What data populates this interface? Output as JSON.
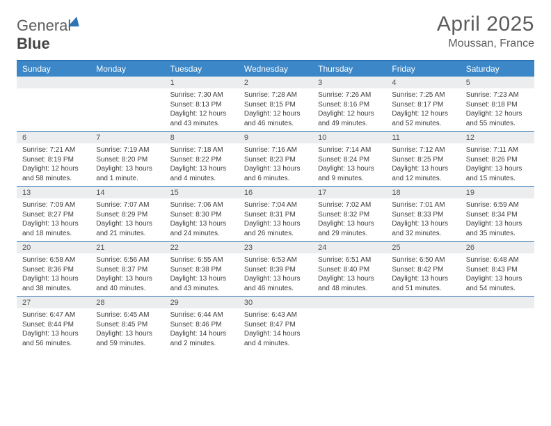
{
  "logo": {
    "part1": "General",
    "part2": "Blue"
  },
  "title": "April 2025",
  "location": "Moussan, France",
  "headers": [
    "Sunday",
    "Monday",
    "Tuesday",
    "Wednesday",
    "Thursday",
    "Friday",
    "Saturday"
  ],
  "colors": {
    "header_bg": "#3b87c8",
    "border": "#2f73b5",
    "daynum_bg": "#ecedee",
    "text": "#3b3b3b",
    "title": "#5c5c5c"
  },
  "weeks": [
    [
      {
        "day": "",
        "sunrise": "",
        "sunset": "",
        "daylight": ""
      },
      {
        "day": "",
        "sunrise": "",
        "sunset": "",
        "daylight": ""
      },
      {
        "day": "1",
        "sunrise": "Sunrise: 7:30 AM",
        "sunset": "Sunset: 8:13 PM",
        "daylight": "Daylight: 12 hours and 43 minutes."
      },
      {
        "day": "2",
        "sunrise": "Sunrise: 7:28 AM",
        "sunset": "Sunset: 8:15 PM",
        "daylight": "Daylight: 12 hours and 46 minutes."
      },
      {
        "day": "3",
        "sunrise": "Sunrise: 7:26 AM",
        "sunset": "Sunset: 8:16 PM",
        "daylight": "Daylight: 12 hours and 49 minutes."
      },
      {
        "day": "4",
        "sunrise": "Sunrise: 7:25 AM",
        "sunset": "Sunset: 8:17 PM",
        "daylight": "Daylight: 12 hours and 52 minutes."
      },
      {
        "day": "5",
        "sunrise": "Sunrise: 7:23 AM",
        "sunset": "Sunset: 8:18 PM",
        "daylight": "Daylight: 12 hours and 55 minutes."
      }
    ],
    [
      {
        "day": "6",
        "sunrise": "Sunrise: 7:21 AM",
        "sunset": "Sunset: 8:19 PM",
        "daylight": "Daylight: 12 hours and 58 minutes."
      },
      {
        "day": "7",
        "sunrise": "Sunrise: 7:19 AM",
        "sunset": "Sunset: 8:20 PM",
        "daylight": "Daylight: 13 hours and 1 minute."
      },
      {
        "day": "8",
        "sunrise": "Sunrise: 7:18 AM",
        "sunset": "Sunset: 8:22 PM",
        "daylight": "Daylight: 13 hours and 4 minutes."
      },
      {
        "day": "9",
        "sunrise": "Sunrise: 7:16 AM",
        "sunset": "Sunset: 8:23 PM",
        "daylight": "Daylight: 13 hours and 6 minutes."
      },
      {
        "day": "10",
        "sunrise": "Sunrise: 7:14 AM",
        "sunset": "Sunset: 8:24 PM",
        "daylight": "Daylight: 13 hours and 9 minutes."
      },
      {
        "day": "11",
        "sunrise": "Sunrise: 7:12 AM",
        "sunset": "Sunset: 8:25 PM",
        "daylight": "Daylight: 13 hours and 12 minutes."
      },
      {
        "day": "12",
        "sunrise": "Sunrise: 7:11 AM",
        "sunset": "Sunset: 8:26 PM",
        "daylight": "Daylight: 13 hours and 15 minutes."
      }
    ],
    [
      {
        "day": "13",
        "sunrise": "Sunrise: 7:09 AM",
        "sunset": "Sunset: 8:27 PM",
        "daylight": "Daylight: 13 hours and 18 minutes."
      },
      {
        "day": "14",
        "sunrise": "Sunrise: 7:07 AM",
        "sunset": "Sunset: 8:29 PM",
        "daylight": "Daylight: 13 hours and 21 minutes."
      },
      {
        "day": "15",
        "sunrise": "Sunrise: 7:06 AM",
        "sunset": "Sunset: 8:30 PM",
        "daylight": "Daylight: 13 hours and 24 minutes."
      },
      {
        "day": "16",
        "sunrise": "Sunrise: 7:04 AM",
        "sunset": "Sunset: 8:31 PM",
        "daylight": "Daylight: 13 hours and 26 minutes."
      },
      {
        "day": "17",
        "sunrise": "Sunrise: 7:02 AM",
        "sunset": "Sunset: 8:32 PM",
        "daylight": "Daylight: 13 hours and 29 minutes."
      },
      {
        "day": "18",
        "sunrise": "Sunrise: 7:01 AM",
        "sunset": "Sunset: 8:33 PM",
        "daylight": "Daylight: 13 hours and 32 minutes."
      },
      {
        "day": "19",
        "sunrise": "Sunrise: 6:59 AM",
        "sunset": "Sunset: 8:34 PM",
        "daylight": "Daylight: 13 hours and 35 minutes."
      }
    ],
    [
      {
        "day": "20",
        "sunrise": "Sunrise: 6:58 AM",
        "sunset": "Sunset: 8:36 PM",
        "daylight": "Daylight: 13 hours and 38 minutes."
      },
      {
        "day": "21",
        "sunrise": "Sunrise: 6:56 AM",
        "sunset": "Sunset: 8:37 PM",
        "daylight": "Daylight: 13 hours and 40 minutes."
      },
      {
        "day": "22",
        "sunrise": "Sunrise: 6:55 AM",
        "sunset": "Sunset: 8:38 PM",
        "daylight": "Daylight: 13 hours and 43 minutes."
      },
      {
        "day": "23",
        "sunrise": "Sunrise: 6:53 AM",
        "sunset": "Sunset: 8:39 PM",
        "daylight": "Daylight: 13 hours and 46 minutes."
      },
      {
        "day": "24",
        "sunrise": "Sunrise: 6:51 AM",
        "sunset": "Sunset: 8:40 PM",
        "daylight": "Daylight: 13 hours and 48 minutes."
      },
      {
        "day": "25",
        "sunrise": "Sunrise: 6:50 AM",
        "sunset": "Sunset: 8:42 PM",
        "daylight": "Daylight: 13 hours and 51 minutes."
      },
      {
        "day": "26",
        "sunrise": "Sunrise: 6:48 AM",
        "sunset": "Sunset: 8:43 PM",
        "daylight": "Daylight: 13 hours and 54 minutes."
      }
    ],
    [
      {
        "day": "27",
        "sunrise": "Sunrise: 6:47 AM",
        "sunset": "Sunset: 8:44 PM",
        "daylight": "Daylight: 13 hours and 56 minutes."
      },
      {
        "day": "28",
        "sunrise": "Sunrise: 6:45 AM",
        "sunset": "Sunset: 8:45 PM",
        "daylight": "Daylight: 13 hours and 59 minutes."
      },
      {
        "day": "29",
        "sunrise": "Sunrise: 6:44 AM",
        "sunset": "Sunset: 8:46 PM",
        "daylight": "Daylight: 14 hours and 2 minutes."
      },
      {
        "day": "30",
        "sunrise": "Sunrise: 6:43 AM",
        "sunset": "Sunset: 8:47 PM",
        "daylight": "Daylight: 14 hours and 4 minutes."
      },
      {
        "day": "",
        "sunrise": "",
        "sunset": "",
        "daylight": ""
      },
      {
        "day": "",
        "sunrise": "",
        "sunset": "",
        "daylight": ""
      },
      {
        "day": "",
        "sunrise": "",
        "sunset": "",
        "daylight": ""
      }
    ]
  ]
}
